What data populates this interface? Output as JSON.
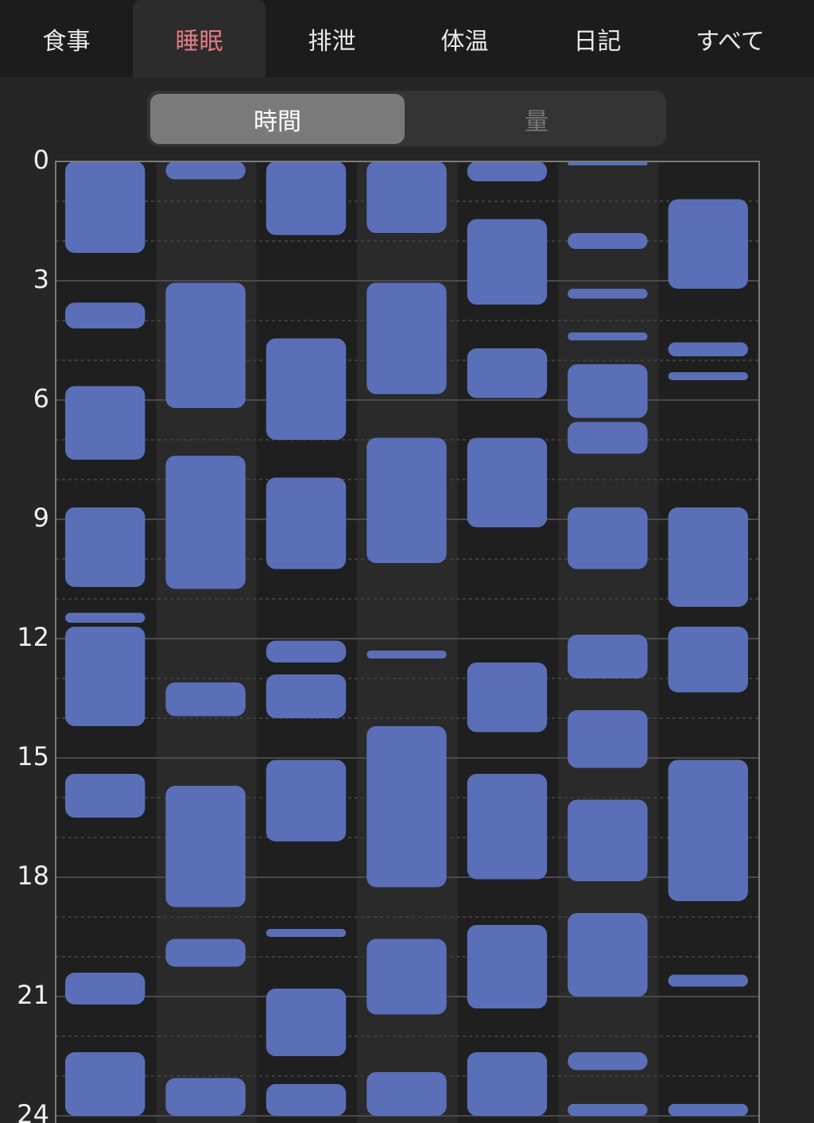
{
  "tabs": [
    "食事",
    "睡眠",
    "排泄",
    "体温",
    "日記",
    "すべて"
  ],
  "active_tab": 1,
  "segments": [
    "時間",
    "量"
  ],
  "active_segment": 0,
  "chart_data": {
    "type": "range_bar",
    "color": "#5a6fb8",
    "ylim": [
      0,
      24
    ],
    "yticks": [
      0,
      3,
      6,
      9,
      12,
      15,
      18,
      21,
      24
    ],
    "minor_yticks": [
      1,
      2,
      4,
      5,
      7,
      8,
      10,
      11,
      13,
      14,
      16,
      17,
      19,
      20,
      22,
      23
    ],
    "columns": [
      {
        "start": [
          0,
          3.55,
          5.65,
          8.7,
          11.35,
          11.7,
          15.4,
          20.4,
          22.4
        ],
        "end": [
          2.3,
          4.2,
          7.5,
          10.7,
          11.6,
          14.2,
          16.5,
          21.2,
          24
        ]
      },
      {
        "start": [
          0,
          3.05,
          7.4,
          13.1,
          15.7,
          19.55,
          23.05
        ],
        "end": [
          0.45,
          6.2,
          10.75,
          13.95,
          18.75,
          20.25,
          24
        ]
      },
      {
        "start": [
          0,
          4.45,
          7.95,
          12.05,
          12.9,
          15.05,
          19.3,
          20.8,
          23.2
        ],
        "end": [
          1.85,
          7.0,
          10.25,
          12.6,
          14.0,
          17.1,
          19.5,
          22.5,
          24
        ]
      },
      {
        "start": [
          0,
          3.05,
          6.95,
          12.3,
          14.2,
          19.55,
          22.9
        ],
        "end": [
          1.8,
          5.85,
          10.1,
          12.5,
          18.25,
          21.45,
          24
        ]
      },
      {
        "start": [
          0,
          1.45,
          4.7,
          6.95,
          12.6,
          15.4,
          19.2,
          22.4
        ],
        "end": [
          0.5,
          3.6,
          5.95,
          9.2,
          14.35,
          18.05,
          21.3,
          24
        ]
      },
      {
        "start": [
          0,
          1.8,
          3.2,
          4.3,
          5.1,
          6.55,
          8.7,
          11.9,
          13.8,
          16.05,
          18.9,
          22.4,
          23.7
        ],
        "end": [
          0.1,
          2.2,
          3.45,
          4.5,
          6.45,
          7.35,
          10.25,
          13.0,
          15.25,
          18.1,
          21.0,
          22.85,
          24
        ]
      },
      {
        "start": [
          0.95,
          4.55,
          5.3,
          8.7,
          11.7,
          15.05,
          20.45,
          23.7
        ],
        "end": [
          3.2,
          4.9,
          5.5,
          11.2,
          13.35,
          18.6,
          20.75,
          24
        ]
      }
    ]
  }
}
